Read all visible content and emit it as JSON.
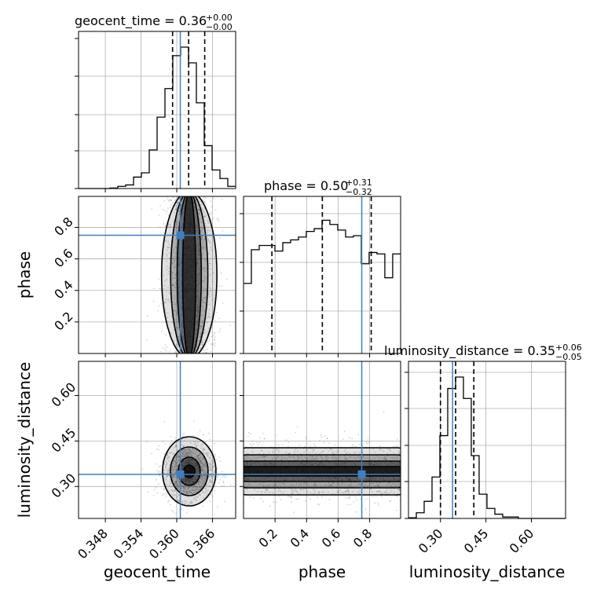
{
  "colors": {
    "truth": "#3f7fbf",
    "hist": "#000000",
    "grid": "#b0b0b0",
    "points": "#808080"
  },
  "labels": {
    "x_geocent": "geocent_time",
    "x_phase": "phase",
    "x_lum": "luminosity_distance",
    "y_phase": "phase",
    "y_lum": "luminosity_distance"
  },
  "titles": {
    "geocent": {
      "main": "geocent_time = 0.36",
      "sup": "+0.00",
      "sub": "−0.00"
    },
    "phase": {
      "main": "phase = 0.50",
      "sup": "+0.31",
      "sub": "−0.32"
    },
    "lum": {
      "main": "luminosity_distance = 0.35",
      "sup": "+0.06",
      "sub": "−0.05"
    }
  },
  "ticks": {
    "geocent": [
      "0.348",
      "0.354",
      "0.360",
      "0.366"
    ],
    "phase": [
      "0.2",
      "0.4",
      "0.6",
      "0.8"
    ],
    "lum": [
      "0.30",
      "0.45",
      "0.60"
    ]
  },
  "chart_data": {
    "type": "corner",
    "parameters": [
      "geocent_time",
      "phase",
      "luminosity_distance"
    ],
    "ranges": {
      "geocent_time": [
        0.3435,
        0.3699
      ],
      "phase": [
        0.0,
        0.9965
      ],
      "luminosity_distance": [
        0.1945,
        0.7128
      ]
    },
    "truths": {
      "geocent_time": 0.3606,
      "phase": 0.75,
      "luminosity_distance": 0.34
    },
    "quantiles": {
      "geocent_time": [
        0.3593,
        0.362,
        0.3647
      ],
      "phase": [
        0.18,
        0.5,
        0.81
      ],
      "luminosity_distance": [
        0.3,
        0.35,
        0.41
      ]
    },
    "grid": true,
    "histograms": {
      "geocent_time": {
        "edges": [
          0.3435,
          0.34482,
          0.34614,
          0.34746,
          0.34878,
          0.3501,
          0.35142,
          0.35274,
          0.35406,
          0.35538,
          0.3567,
          0.35802,
          0.35934,
          0.36066,
          0.36198,
          0.3633,
          0.36462,
          0.36594,
          0.36726,
          0.36858,
          0.3699
        ],
        "counts": [
          0,
          0,
          0,
          0,
          0.3,
          1.5,
          2.5,
          8,
          11,
          27,
          50,
          70,
          93,
          99,
          88,
          60,
          30,
          13,
          7,
          1.5
        ]
      },
      "phase": {
        "edges": [
          0.0,
          0.0498,
          0.0996,
          0.1494,
          0.1992,
          0.249,
          0.2988,
          0.3486,
          0.3984,
          0.4482,
          0.498,
          0.5478,
          0.5976,
          0.6474,
          0.6972,
          0.747,
          0.7968,
          0.8466,
          0.8964,
          0.9462,
          0.9965
        ],
        "counts": [
          50,
          74,
          77,
          77,
          73,
          79,
          81,
          83,
          87,
          89,
          95,
          92,
          88,
          83,
          84,
          64,
          72,
          71,
          54,
          71
        ]
      },
      "luminosity_distance": {
        "edges": [
          0.1945,
          0.2204,
          0.2463,
          0.2722,
          0.2981,
          0.324,
          0.3499,
          0.3758,
          0.4017,
          0.4276,
          0.4535,
          0.4794,
          0.5053,
          0.5312,
          0.5571,
          0.583,
          0.6089,
          0.6348,
          0.6607,
          0.6866,
          0.7128
        ],
        "counts": [
          0.5,
          4,
          12,
          29,
          58,
          91,
          99,
          84,
          44,
          17,
          7,
          3,
          1,
          1,
          0,
          0,
          0,
          0,
          0,
          0
        ]
      }
    },
    "density_2d": {
      "phase_vs_geocent_time": {
        "mean_x": 0.3621,
        "sd_x": 0.0021,
        "y_min": 0.0,
        "y_max": 0.9965
      },
      "luminosity_distance_vs_geocent_time": {
        "mean_x": 0.3621,
        "sd_x": 0.0021,
        "mean_y": 0.35,
        "sd_y": 0.046
      },
      "luminosity_distance_vs_phase": {
        "x_min": 0.0,
        "x_max": 0.9965,
        "mean_y": 0.35,
        "sd_y": 0.046
      }
    }
  }
}
